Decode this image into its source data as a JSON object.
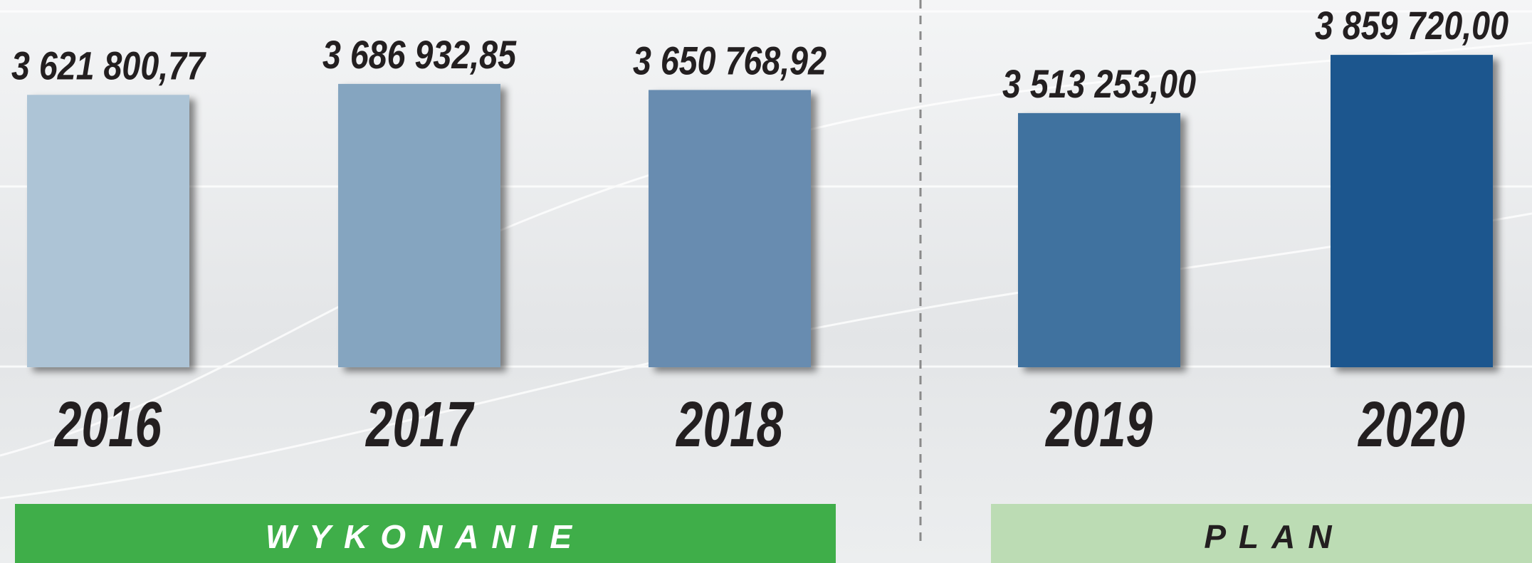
{
  "chart_data": {
    "type": "bar",
    "categories": [
      "2016",
      "2017",
      "2018",
      "2019",
      "2020"
    ],
    "values": [
      3621800.77,
      3686932.85,
      3650768.92,
      3513253.0,
      3859720.0
    ],
    "value_labels": [
      "3 621 800,77",
      "3 686 932,85",
      "3 650 768,92",
      "3 513 253,00",
      "3 859 720,00"
    ],
    "colors": [
      "#adc4d6",
      "#85a5c0",
      "#688cb0",
      "#41729f",
      "#1a578e"
    ],
    "ylim": [
      2000000,
      4000000
    ],
    "groups": [
      {
        "label": "WYKONANIE",
        "color": "#3fae49"
      },
      {
        "label": "PLAN",
        "color": "#bcdcb4"
      }
    ]
  }
}
